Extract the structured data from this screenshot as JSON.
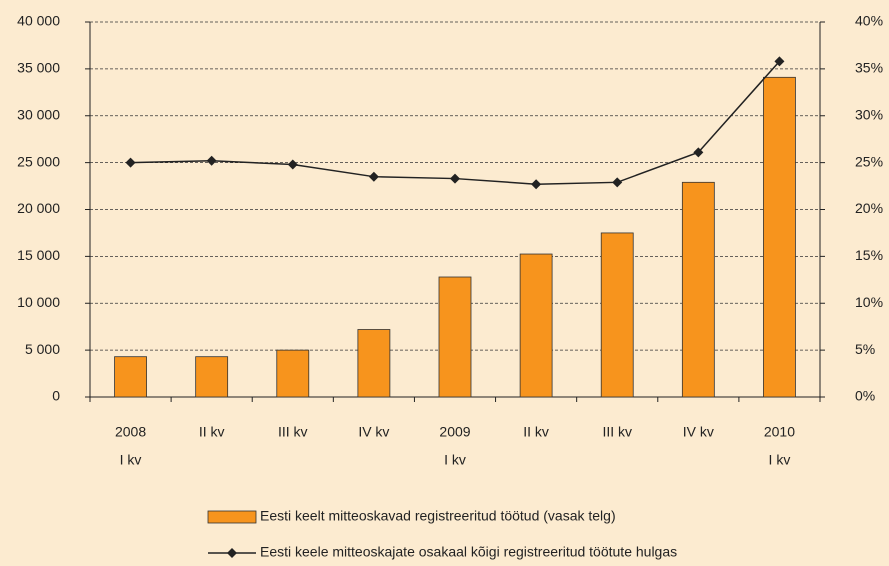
{
  "chart_data": {
    "type": "bar",
    "categories": [
      [
        "2008",
        "I kv"
      ],
      [
        "II kv"
      ],
      [
        "III kv"
      ],
      [
        "IV kv"
      ],
      [
        "2009",
        "I kv"
      ],
      [
        "II kv"
      ],
      [
        "III kv"
      ],
      [
        "IV kv"
      ],
      [
        "2010",
        "I kv"
      ]
    ],
    "series": [
      {
        "name": "Eesti keelt mitteoskavad registreeritud töötud (vasak telg)",
        "type": "bar",
        "color": "#f7941d",
        "values": [
          4300,
          4300,
          5000,
          7200,
          12800,
          15250,
          17500,
          22900,
          34100
        ]
      },
      {
        "name": "Eesti keele mitteoskajate osakaal kõigi registreeritud töötute hulgas",
        "type": "line",
        "axis": "y2",
        "color": "#222222",
        "values": [
          25.0,
          25.2,
          24.8,
          23.5,
          23.3,
          22.7,
          22.9,
          26.1,
          35.8
        ]
      }
    ],
    "ylim": [
      0,
      40000
    ],
    "yticks": [
      0,
      {
        "value": 5000,
        "label": "5 000"
      },
      {
        "value": 10000,
        "label": "10 000"
      },
      {
        "value": 15000,
        "label": "15 000"
      },
      {
        "value": 20000,
        "label": "20 000"
      },
      {
        "value": 25000,
        "label": "25 000"
      },
      {
        "value": 30000,
        "label": "30 000"
      },
      {
        "value": 35000,
        "label": "35 000"
      },
      {
        "value": 40000,
        "label": "40 000"
      }
    ],
    "y2lim": [
      0,
      40
    ],
    "y2ticks": [
      {
        "value": 0,
        "label": "0%"
      },
      {
        "value": 5,
        "label": "5%"
      },
      {
        "value": 10,
        "label": "10%"
      },
      {
        "value": 15,
        "label": "15%"
      },
      {
        "value": 20,
        "label": "20%"
      },
      {
        "value": 25,
        "label": "25%"
      },
      {
        "value": 30,
        "label": "30%"
      },
      {
        "value": 35,
        "label": "35%"
      },
      {
        "value": 40,
        "label": "40%"
      }
    ],
    "grid": true
  }
}
